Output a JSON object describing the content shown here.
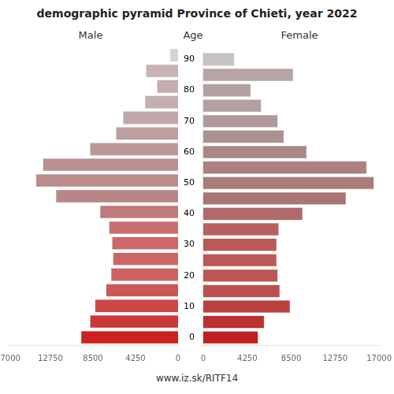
{
  "chart_data": {
    "type": "bar",
    "orientation": "horizontal",
    "title": "demographic pyramid Province of Chieti, year 2022",
    "y_label": "Age",
    "categories": [
      "0",
      null,
      "10",
      null,
      "20",
      null,
      "30",
      null,
      "40",
      null,
      "50",
      null,
      "60",
      null,
      "70",
      null,
      "80",
      null,
      "90"
    ],
    "series": [
      {
        "name": "Male",
        "colors": [
          "#cd2020",
          "#cc3838",
          "#cc4848",
          "#cc5858",
          "#cc6262",
          "#cc6666",
          "#cc6868",
          "#c87070",
          "#c07a7a",
          "#b88686",
          "#ba8c8c",
          "#bc9090",
          "#ba9898",
          "#bca0a0",
          "#c0a8a8",
          "#c4aeae",
          "#c4aeae",
          "#c8b4b4",
          "#d8d2d2"
        ],
        "values": [
          9700,
          8800,
          8300,
          7200,
          6700,
          6500,
          6600,
          6900,
          7800,
          12200,
          14200,
          13500,
          8800,
          6200,
          5500,
          3300,
          2100,
          3200,
          800
        ]
      },
      {
        "name": "Female",
        "colors": [
          "#c02020",
          "#bc3030",
          "#bc4040",
          "#bc5050",
          "#bc5656",
          "#bc5858",
          "#bc5858",
          "#b86060",
          "#b06a6a",
          "#a87676",
          "#aa7c7c",
          "#ac8080",
          "#aa8888",
          "#ac9090",
          "#b09898",
          "#b4a0a0",
          "#b4a0a0",
          "#b8a4a4",
          "#c8c2c2"
        ],
        "values": [
          5300,
          5900,
          8400,
          7400,
          7200,
          7100,
          7100,
          7300,
          9600,
          13800,
          16500,
          15800,
          10000,
          7800,
          7200,
          5600,
          4600,
          8700,
          3000
        ]
      }
    ],
    "xlim": [
      0,
      17000
    ],
    "xticks": [
      0,
      4250,
      8500,
      12750,
      17000
    ],
    "grid": false,
    "annotations": [
      {
        "text": "www.iz.sk/RITF14"
      }
    ]
  }
}
